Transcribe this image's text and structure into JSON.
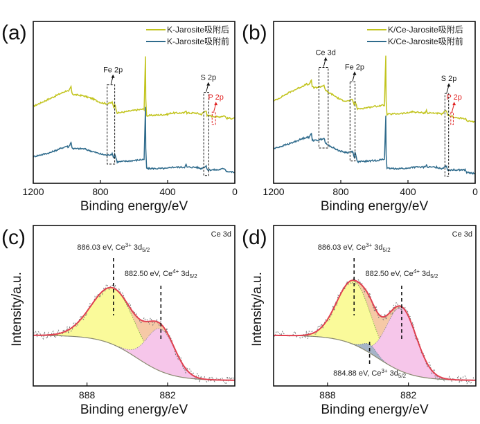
{
  "chart_data": [
    {
      "id": "a",
      "type": "line",
      "panel_label": "(a)",
      "xlabel": "Binding energy/eV",
      "ylabel": "",
      "xlim": [
        1200,
        0
      ],
      "xticks": [
        1200,
        800,
        400,
        0
      ],
      "x_reversed": true,
      "legend_position": "top-right",
      "series": [
        {
          "name": "K-Jarosite吸附后",
          "color": "#c2c41e",
          "x": [
            1200,
            1100,
            1000,
            990,
            975,
            970,
            960,
            900,
            850,
            800,
            760,
            730,
            720,
            715,
            700,
            600,
            540,
            532,
            530,
            525,
            520,
            400,
            380,
            300,
            290,
            285,
            230,
            200,
            170,
            165,
            150,
            100,
            60,
            50,
            0
          ],
          "y": [
            0.54,
            0.6,
            0.66,
            0.65,
            0.69,
            0.64,
            0.63,
            0.62,
            0.6,
            0.57,
            0.56,
            0.57,
            0.53,
            0.56,
            0.49,
            0.51,
            0.52,
            0.92,
            0.6,
            0.47,
            0.47,
            0.48,
            0.49,
            0.49,
            0.51,
            0.49,
            0.49,
            0.48,
            0.51,
            0.47,
            0.47,
            0.46,
            0.47,
            0.45,
            0.45
          ]
        },
        {
          "name": "K-Jarosite吸附前",
          "color": "#2f6b8c",
          "x": [
            1200,
            1100,
            1000,
            990,
            975,
            970,
            960,
            900,
            850,
            800,
            760,
            730,
            720,
            715,
            700,
            600,
            540,
            532,
            530,
            525,
            520,
            400,
            380,
            300,
            290,
            285,
            230,
            200,
            170,
            165,
            150,
            100,
            60,
            50,
            0
          ],
          "y": [
            0.16,
            0.19,
            0.24,
            0.23,
            0.27,
            0.23,
            0.22,
            0.22,
            0.2,
            0.18,
            0.17,
            0.18,
            0.15,
            0.18,
            0.12,
            0.13,
            0.14,
            0.53,
            0.22,
            0.07,
            0.07,
            0.07,
            0.08,
            0.08,
            0.1,
            0.08,
            0.08,
            0.07,
            0.09,
            0.06,
            0.06,
            0.06,
            0.07,
            0.05,
            0.04
          ]
        }
      ],
      "annotations": [
        {
          "text": "Fe 2p",
          "color": "#222",
          "box_x": [
            760,
            715
          ]
        },
        {
          "text": "S 2p",
          "color": "#222",
          "box_x": [
            185,
            155
          ]
        },
        {
          "text": "P 2p",
          "color": "#e02020",
          "box_x": [
            135,
            115
          ]
        }
      ]
    },
    {
      "id": "b",
      "type": "line",
      "panel_label": "(b)",
      "xlabel": "Binding energy/eV",
      "ylabel": "",
      "xlim": [
        1200,
        0
      ],
      "xticks": [
        1200,
        800,
        400,
        0
      ],
      "x_reversed": true,
      "legend_position": "top-right",
      "series": [
        {
          "name": "K/Ce-Jarosite吸附后",
          "color": "#c2c41e",
          "x": [
            1200,
            1100,
            1000,
            990,
            975,
            970,
            960,
            920,
            900,
            890,
            880,
            850,
            800,
            760,
            730,
            720,
            715,
            700,
            600,
            540,
            532,
            530,
            525,
            520,
            400,
            380,
            300,
            290,
            285,
            230,
            200,
            170,
            165,
            150,
            100,
            60,
            50,
            0
          ],
          "y": [
            0.58,
            0.65,
            0.71,
            0.7,
            0.74,
            0.69,
            0.68,
            0.69,
            0.7,
            0.66,
            0.65,
            0.63,
            0.59,
            0.58,
            0.59,
            0.55,
            0.58,
            0.52,
            0.54,
            0.55,
            0.93,
            0.58,
            0.48,
            0.48,
            0.49,
            0.5,
            0.49,
            0.51,
            0.49,
            0.49,
            0.48,
            0.51,
            0.47,
            0.47,
            0.45,
            0.45,
            0.43,
            0.42
          ]
        },
        {
          "name": "K/Ce-Jarosite吸附前",
          "color": "#2f6b8c",
          "x": [
            1200,
            1100,
            1000,
            990,
            975,
            970,
            960,
            920,
            900,
            890,
            880,
            850,
            800,
            760,
            730,
            720,
            715,
            700,
            600,
            540,
            532,
            530,
            525,
            520,
            400,
            380,
            300,
            290,
            285,
            230,
            200,
            170,
            165,
            150,
            100,
            60,
            50,
            0
          ],
          "y": [
            0.22,
            0.26,
            0.31,
            0.3,
            0.34,
            0.29,
            0.28,
            0.29,
            0.3,
            0.26,
            0.25,
            0.23,
            0.2,
            0.19,
            0.2,
            0.16,
            0.19,
            0.12,
            0.13,
            0.14,
            0.47,
            0.18,
            0.07,
            0.07,
            0.07,
            0.08,
            0.08,
            0.1,
            0.08,
            0.08,
            0.07,
            0.09,
            0.06,
            0.06,
            0.06,
            0.06,
            0.04,
            0.03
          ]
        }
      ],
      "annotations": [
        {
          "text": "Ce 3d",
          "color": "#222",
          "box_x": [
            930,
            875
          ]
        },
        {
          "text": "Fe 2p",
          "color": "#222",
          "box_x": [
            745,
            715
          ]
        },
        {
          "text": "S 2p",
          "color": "#222",
          "box_x": [
            180,
            158
          ]
        },
        {
          "text": "P 2p",
          "color": "#e02020",
          "box_x": [
            145,
            130
          ]
        }
      ]
    },
    {
      "id": "c",
      "type": "area",
      "panel_label": "(c)",
      "title_corner": "Ce 3d",
      "xlabel": "Binding energy/eV",
      "ylabel": "Intensity/a.u.",
      "xlim": [
        892,
        877
      ],
      "xticks": [
        888,
        882
      ],
      "x_reversed": true,
      "background": {
        "color": "#8a8a70"
      },
      "components": [
        {
          "name": "Ce3+ 3d5/2",
          "center": 886.03,
          "height": 0.4,
          "width": 1.6,
          "fill": "#fafa9a",
          "edge": "#6aaa3a"
        },
        {
          "name": "Ce4+ 3d5/2",
          "center": 882.5,
          "height": 0.3,
          "width": 1.05,
          "fill": "#f6c6ea",
          "edge": "#8a8aa0"
        },
        {
          "name": "residual",
          "fill": "#f6c9a6"
        }
      ],
      "envelope_color": "#e04050",
      "raw_color": "#777777",
      "peak_labels": [
        {
          "energy": 886.03,
          "pre": "886.03 eV, Ce",
          "sup": "3+",
          "mid": " 3d",
          "sub": "5/2"
        },
        {
          "energy": 882.5,
          "pre": "882.50 eV, Ce",
          "sup": "4+",
          "mid": " 3d",
          "sub": "5/2"
        }
      ]
    },
    {
      "id": "d",
      "type": "area",
      "panel_label": "(d)",
      "title_corner": "Ce 3d",
      "xlabel": "Binding energy/eV",
      "ylabel": "Intensity/a.u.",
      "xlim": [
        892,
        877
      ],
      "xticks": [
        888,
        882
      ],
      "x_reversed": true,
      "background": {
        "color": "#8a8a70"
      },
      "components": [
        {
          "name": "Ce3+ 3d5/2",
          "center": 886.03,
          "height": 0.45,
          "width": 1.25,
          "fill": "#fafa9a",
          "edge": "#6aaa3a"
        },
        {
          "name": "Ce4+ 3d5/2",
          "center": 882.5,
          "height": 0.45,
          "width": 1.1,
          "fill": "#f6c6ea",
          "edge": "#8a8aa0"
        },
        {
          "name": "Ce3+ 3d5/2 (884.88)",
          "center": 884.88,
          "height": 0.06,
          "width": 0.5,
          "fill": "#a6b4c8",
          "edge": "#6a7a90"
        },
        {
          "name": "residual",
          "fill": "#f6c9a6"
        }
      ],
      "envelope_color": "#e04050",
      "raw_color": "#777777",
      "peak_labels": [
        {
          "energy": 886.03,
          "pre": "886.03 eV, Ce",
          "sup": "3+",
          "mid": " 3d",
          "sub": "5/2"
        },
        {
          "energy": 882.5,
          "pre": "882.50 eV, Ce",
          "sup": "4+",
          "mid": " 3d",
          "sub": "5/2"
        },
        {
          "energy": 884.88,
          "pre": "884.88 eV, Ce",
          "sup": "3+",
          "mid": " 3d",
          "sub": "5/2",
          "below": true
        }
      ]
    }
  ]
}
